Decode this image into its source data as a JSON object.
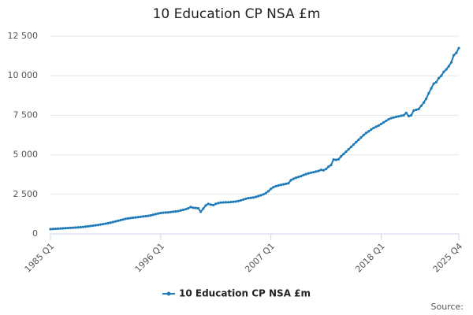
{
  "chart_data": {
    "type": "line",
    "title": "10 Education CP NSA £m",
    "source": "Source:",
    "categories": [
      "1985 Q1",
      null,
      null,
      null,
      null,
      null,
      null,
      null,
      null,
      null,
      null,
      null,
      null,
      null,
      null,
      null,
      null,
      null,
      null,
      null,
      null,
      null,
      null,
      null,
      null,
      null,
      null,
      null,
      null,
      null,
      null,
      null,
      null,
      null,
      null,
      null,
      null,
      null,
      null,
      null,
      null,
      null,
      null,
      null,
      "1996 Q1",
      null,
      null,
      null,
      null,
      null,
      null,
      null,
      null,
      null,
      null,
      null,
      null,
      null,
      null,
      null,
      null,
      null,
      null,
      null,
      null,
      null,
      null,
      null,
      null,
      null,
      null,
      null,
      null,
      null,
      null,
      null,
      null,
      null,
      null,
      null,
      null,
      null,
      null,
      null,
      null,
      null,
      null,
      null,
      "2007 Q1",
      null,
      null,
      null,
      null,
      null,
      null,
      null,
      null,
      null,
      null,
      null,
      null,
      null,
      null,
      null,
      null,
      null,
      null,
      null,
      null,
      null,
      null,
      null,
      null,
      null,
      null,
      null,
      null,
      null,
      null,
      null,
      null,
      null,
      null,
      null,
      null,
      null,
      null,
      null,
      null,
      null,
      null,
      null,
      "2018 Q1",
      null,
      null,
      null,
      null,
      null,
      null,
      null,
      null,
      null,
      null,
      null,
      null,
      null,
      null,
      null,
      null,
      null,
      null,
      null,
      null,
      null,
      null,
      null,
      null,
      null,
      null,
      null,
      null,
      null,
      null,
      "2025 Q4"
    ],
    "series": [
      {
        "name": "10 Education CP NSA £m",
        "color": "#1f7ab8",
        "values": [
          300,
          310,
          320,
          330,
          340,
          350,
          360,
          370,
          380,
          390,
          400,
          410,
          420,
          440,
          460,
          480,
          500,
          520,
          540,
          560,
          590,
          620,
          650,
          680,
          710,
          750,
          790,
          830,
          870,
          910,
          950,
          980,
          1000,
          1020,
          1040,
          1060,
          1080,
          1100,
          1120,
          1140,
          1170,
          1210,
          1250,
          1290,
          1320,
          1340,
          1350,
          1360,
          1380,
          1400,
          1420,
          1440,
          1480,
          1520,
          1560,
          1620,
          1700,
          1650,
          1640,
          1620,
          1400,
          1600,
          1800,
          1900,
          1850,
          1820,
          1900,
          1950,
          1980,
          1990,
          2000,
          2000,
          2010,
          2030,
          2050,
          2080,
          2120,
          2170,
          2220,
          2260,
          2280,
          2300,
          2340,
          2390,
          2440,
          2500,
          2580,
          2700,
          2850,
          2950,
          3020,
          3060,
          3100,
          3130,
          3170,
          3200,
          3400,
          3480,
          3550,
          3600,
          3650,
          3720,
          3780,
          3830,
          3870,
          3900,
          3940,
          3980,
          4050,
          4020,
          4100,
          4250,
          4350,
          4700,
          4680,
          4720,
          4900,
          5050,
          5200,
          5350,
          5500,
          5650,
          5800,
          5950,
          6100,
          6250,
          6380,
          6480,
          6600,
          6700,
          6780,
          6850,
          6950,
          7050,
          7150,
          7250,
          7320,
          7360,
          7400,
          7430,
          7470,
          7500,
          7650,
          7450,
          7500,
          7800,
          7850,
          7900,
          8100,
          8300,
          8550,
          8900,
          9200,
          9500,
          9600,
          9850,
          10000,
          10250,
          10400,
          10600,
          10850,
          11300,
          11450,
          11750
        ]
      }
    ],
    "ylim": [
      0,
      12500
    ],
    "yticks": [
      0,
      {
        "value": 2500,
        "label": "2 500"
      },
      {
        "value": 5000,
        "label": "5 000"
      },
      {
        "value": 7500,
        "label": "7 500"
      },
      {
        "value": 10000,
        "label": "10 000"
      },
      {
        "value": 12500,
        "label": "12 500"
      }
    ],
    "grid": true
  }
}
